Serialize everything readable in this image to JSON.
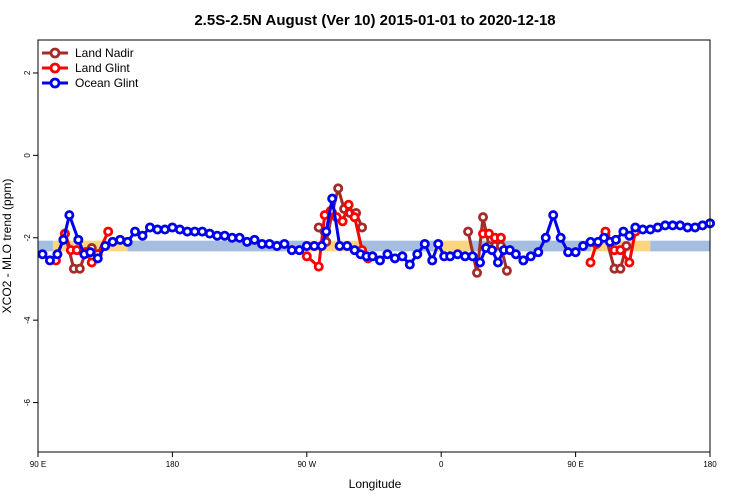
{
  "chart_data": {
    "type": "line",
    "title": "2.5S-2.5N August (Ver 10)   2015-01-01 to 2020-12-18",
    "xlabel": "Longitude",
    "ylabel": "XCO2 - MLO trend (ppm)",
    "x_ticks": [
      {
        "value": 0,
        "label": "90 E"
      },
      {
        "value": 90,
        "label": "180"
      },
      {
        "value": 180,
        "label": "90 W"
      },
      {
        "value": 270,
        "label": "0"
      },
      {
        "value": 360,
        "label": "90 E"
      },
      {
        "value": 450,
        "label": "180"
      }
    ],
    "y_ticks": [
      2,
      0,
      -2,
      -4,
      -6
    ],
    "xlim": [
      0,
      450
    ],
    "ylim": [
      -7.2,
      2.8
    ],
    "grid": false,
    "legend_position": "top-left",
    "bands": [
      {
        "name": "land-band",
        "color": "#fcd57f",
        "y_range": [
          -2.33,
          -2.07
        ],
        "segments": [
          [
            10,
            60
          ],
          [
            180,
            215
          ],
          [
            265,
            290
          ],
          [
            370,
            410
          ]
        ]
      },
      {
        "name": "ocean-band",
        "color": "#a4bde0",
        "y_range": [
          -2.33,
          -2.07
        ],
        "segments": [
          [
            0,
            10
          ],
          [
            60,
            180
          ],
          [
            215,
            265
          ],
          [
            290,
            370
          ],
          [
            410,
            450
          ]
        ]
      }
    ],
    "series": [
      {
        "name": "Land Nadir",
        "color": "#a52a2a",
        "segments": [
          {
            "x": [
              18,
              24,
              28,
              32,
              36
            ],
            "y": [
              -1.9,
              -2.75,
              -2.75,
              -2.35,
              -2.25
            ]
          },
          {
            "x": [
              188,
              193,
              197,
              201,
              205,
              209,
              213,
              217
            ],
            "y": [
              -1.75,
              -2.1,
              -1.4,
              -0.8,
              -1.3,
              -1.4,
              -1.4,
              -1.75
            ]
          },
          {
            "x": [
              288,
              294,
              298,
              302,
              306,
              310,
              314
            ],
            "y": [
              -1.85,
              -2.85,
              -1.5,
              -2.2,
              -2.2,
              -2.2,
              -2.8
            ]
          },
          {
            "x": [
              380,
              386,
              390,
              394
            ],
            "y": [
              -1.95,
              -2.75,
              -2.75,
              -2.2
            ]
          }
        ]
      },
      {
        "name": "Land Glint",
        "color": "#ff0000",
        "segments": [
          {
            "x": [
              12,
              18,
              22,
              26,
              32,
              36,
              40,
              47
            ],
            "y": [
              -2.55,
              -1.9,
              -2.3,
              -2.3,
              -2.35,
              -2.6,
              -2.4,
              -1.85
            ]
          },
          {
            "x": [
              180,
              188,
              192,
              196,
              200,
              204,
              208,
              212,
              217,
              221
            ],
            "y": [
              -2.45,
              -2.7,
              -1.45,
              -1.35,
              -1.5,
              -1.6,
              -1.2,
              -1.5,
              -2.3,
              -2.5
            ]
          },
          {
            "x": [
              298,
              302,
              306,
              310
            ],
            "y": [
              -1.9,
              -1.9,
              -2.0,
              -2.0
            ]
          },
          {
            "x": [
              370,
              374,
              380,
              386,
              390,
              396,
              400
            ],
            "y": [
              -2.6,
              -2.15,
              -1.85,
              -2.3,
              -2.3,
              -2.6,
              -1.85
            ]
          }
        ]
      },
      {
        "name": "Ocean Glint",
        "color": "#0000ee",
        "segments": [
          {
            "x": [
              3,
              8,
              13,
              17,
              21,
              27,
              31,
              35,
              40,
              45,
              50,
              55,
              60,
              65,
              70,
              75,
              80,
              85,
              90,
              95,
              100,
              105,
              110,
              115,
              120,
              125,
              130,
              135,
              140,
              145,
              150,
              155,
              160,
              165,
              170,
              175,
              180,
              185,
              190,
              193,
              197,
              202,
              207,
              212,
              216,
              220,
              224,
              229,
              234,
              239,
              244,
              249,
              254,
              259,
              264,
              268,
              272,
              276,
              281,
              286,
              291,
              296,
              300,
              304,
              308,
              312,
              316,
              320,
              325,
              330,
              335,
              340,
              345,
              350,
              355,
              360,
              365,
              370,
              375,
              379,
              383,
              387,
              392,
              396,
              400,
              405,
              410,
              415,
              420,
              425,
              430,
              435,
              440,
              445,
              450
            ],
            "y": [
              -2.4,
              -2.55,
              -2.4,
              -2.05,
              -1.45,
              -2.05,
              -2.4,
              -2.35,
              -2.5,
              -2.2,
              -2.1,
              -2.05,
              -2.1,
              -1.85,
              -1.95,
              -1.75,
              -1.8,
              -1.8,
              -1.75,
              -1.8,
              -1.85,
              -1.85,
              -1.85,
              -1.9,
              -1.95,
              -1.95,
              -2.0,
              -2.0,
              -2.1,
              -2.05,
              -2.15,
              -2.15,
              -2.2,
              -2.15,
              -2.3,
              -2.3,
              -2.2,
              -2.2,
              -2.2,
              -1.85,
              -1.05,
              -2.2,
              -2.2,
              -2.3,
              -2.4,
              -2.45,
              -2.45,
              -2.55,
              -2.4,
              -2.5,
              -2.45,
              -2.65,
              -2.4,
              -2.15,
              -2.55,
              -2.15,
              -2.45,
              -2.45,
              -2.4,
              -2.45,
              -2.45,
              -2.6,
              -2.25,
              -2.3,
              -2.6,
              -2.3,
              -2.3,
              -2.4,
              -2.55,
              -2.45,
              -2.35,
              -2.0,
              -1.45,
              -2.0,
              -2.35,
              -2.35,
              -2.2,
              -2.1,
              -2.1,
              -2.0,
              -2.1,
              -2.05,
              -1.85,
              -1.95,
              -1.75,
              -1.8,
              -1.8,
              -1.75,
              -1.7,
              -1.7,
              -1.7,
              -1.75,
              -1.75,
              -1.7,
              -1.65
            ]
          }
        ]
      }
    ]
  }
}
